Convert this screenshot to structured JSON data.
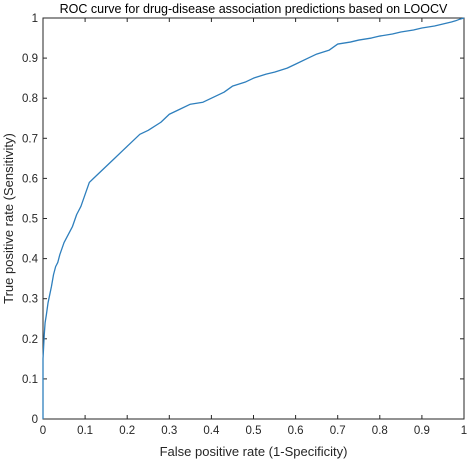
{
  "chart_data": {
    "type": "line",
    "title": "ROC curve for drug-disease association predictions based on LOOCV",
    "xlabel": "False positive rate (1-Specificity)",
    "ylabel": "True positive rate (Sensitivity)",
    "xlim": [
      0,
      1
    ],
    "ylim": [
      0,
      1
    ],
    "xticks": [
      "0",
      "0.1",
      "0.2",
      "0.3",
      "0.4",
      "0.5",
      "0.6",
      "0.7",
      "0.8",
      "0.9",
      "1"
    ],
    "yticks": [
      "0",
      "0.1",
      "0.2",
      "0.3",
      "0.4",
      "0.5",
      "0.6",
      "0.7",
      "0.8",
      "0.9",
      "1"
    ],
    "grid": false,
    "box": true,
    "line_color": "#2e7fbd",
    "series": [
      {
        "x": [
          0,
          0,
          0.003,
          0.005,
          0.008,
          0.012,
          0.016,
          0.02,
          0.025,
          0.03,
          0.035,
          0.04,
          0.05,
          0.06,
          0.07,
          0.08,
          0.09,
          0.1,
          0.11,
          0.12,
          0.13,
          0.15,
          0.17,
          0.19,
          0.21,
          0.23,
          0.25,
          0.28,
          0.3,
          0.32,
          0.35,
          0.38,
          0.4,
          0.43,
          0.45,
          0.48,
          0.5,
          0.53,
          0.55,
          0.58,
          0.6,
          0.63,
          0.65,
          0.68,
          0.7,
          0.73,
          0.75,
          0.78,
          0.8,
          0.83,
          0.85,
          0.88,
          0.9,
          0.93,
          0.95,
          0.97,
          0.98,
          0.99,
          1.0
        ],
        "y": [
          0,
          0.15,
          0.21,
          0.24,
          0.26,
          0.29,
          0.31,
          0.33,
          0.36,
          0.38,
          0.39,
          0.41,
          0.44,
          0.46,
          0.48,
          0.51,
          0.53,
          0.56,
          0.59,
          0.6,
          0.61,
          0.63,
          0.65,
          0.67,
          0.69,
          0.71,
          0.72,
          0.74,
          0.76,
          0.77,
          0.785,
          0.79,
          0.8,
          0.815,
          0.83,
          0.84,
          0.85,
          0.86,
          0.865,
          0.875,
          0.885,
          0.9,
          0.91,
          0.92,
          0.935,
          0.94,
          0.945,
          0.95,
          0.955,
          0.96,
          0.965,
          0.97,
          0.975,
          0.98,
          0.985,
          0.99,
          0.993,
          0.997,
          1.0
        ]
      }
    ]
  }
}
